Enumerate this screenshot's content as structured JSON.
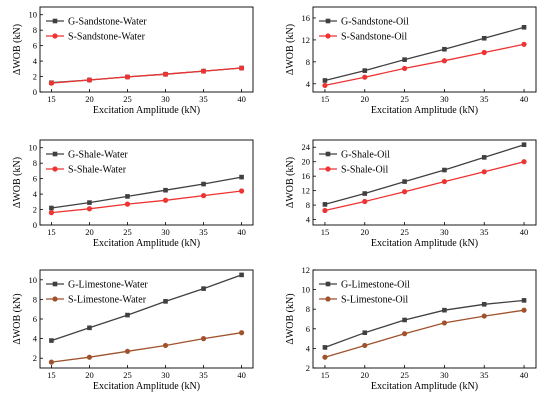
{
  "chart_data": [
    {
      "type": "line",
      "x": [
        15,
        20,
        25,
        30,
        35,
        40
      ],
      "xlabel": "Excitation Amplitude (kN)",
      "ylabel": "ΔWOB (kN)",
      "ylim": [
        0,
        11
      ],
      "yticks": [
        0,
        2,
        4,
        6,
        8,
        10
      ],
      "legend": "top-left",
      "grid": false,
      "series": [
        {
          "name": "G-Sandstone-Water",
          "marker": "square",
          "color": "#404040",
          "values": [
            1.2,
            1.55,
            1.95,
            2.3,
            2.7,
            3.1
          ]
        },
        {
          "name": "S-Sandstone-Water",
          "marker": "circle",
          "color": "#ee3333",
          "values": [
            1.15,
            1.55,
            1.95,
            2.3,
            2.7,
            3.1
          ]
        }
      ]
    },
    {
      "type": "line",
      "x": [
        15,
        20,
        25,
        30,
        35,
        40
      ],
      "xlabel": "Excitation Amplitude (kN)",
      "ylabel": "ΔWOB (kN)",
      "ylim": [
        2.5,
        18
      ],
      "yticks": [
        4,
        8,
        12,
        16
      ],
      "legend": "top-left",
      "grid": false,
      "series": [
        {
          "name": "G-Sandstone-Oil",
          "marker": "square",
          "color": "#404040",
          "values": [
            4.6,
            6.4,
            8.4,
            10.3,
            12.3,
            14.3
          ]
        },
        {
          "name": "S-Sandstone-Oil",
          "marker": "circle",
          "color": "#ee3333",
          "values": [
            3.7,
            5.2,
            6.8,
            8.2,
            9.7,
            11.2
          ]
        }
      ]
    },
    {
      "type": "line",
      "x": [
        15,
        20,
        25,
        30,
        35,
        40
      ],
      "xlabel": "Excitation Amplitude (kN)",
      "ylabel": "ΔWOB (kN)",
      "ylim": [
        0,
        11
      ],
      "yticks": [
        0,
        2,
        4,
        6,
        8,
        10
      ],
      "legend": "top-left",
      "grid": false,
      "series": [
        {
          "name": "G-Shale-Water",
          "marker": "square",
          "color": "#404040",
          "values": [
            2.2,
            2.9,
            3.7,
            4.5,
            5.3,
            6.2
          ]
        },
        {
          "name": "S-Shale-Water",
          "marker": "circle",
          "color": "#ee3333",
          "values": [
            1.6,
            2.1,
            2.7,
            3.2,
            3.8,
            4.4
          ]
        }
      ]
    },
    {
      "type": "line",
      "x": [
        15,
        20,
        25,
        30,
        35,
        40
      ],
      "xlabel": "Excitation Amplitude (kN)",
      "ylabel": "ΔWOB (kN)",
      "ylim": [
        2.5,
        26
      ],
      "yticks": [
        4,
        8,
        12,
        16,
        20,
        24
      ],
      "legend": "top-left",
      "grid": false,
      "series": [
        {
          "name": "G-Shale-Oil",
          "marker": "square",
          "color": "#404040",
          "values": [
            8.2,
            11.2,
            14.5,
            17.7,
            21.2,
            24.7
          ]
        },
        {
          "name": "S-Shale-Oil",
          "marker": "circle",
          "color": "#ee3333",
          "values": [
            6.5,
            9.0,
            11.7,
            14.5,
            17.2,
            20.0
          ]
        }
      ]
    },
    {
      "type": "line",
      "x": [
        15,
        20,
        25,
        30,
        35,
        40
      ],
      "xlabel": "Excitation Amplitude (kN)",
      "ylabel": "ΔWOB (kN)",
      "ylim": [
        1,
        11
      ],
      "yticks": [
        2,
        4,
        6,
        8,
        10
      ],
      "legend": "top-left",
      "grid": false,
      "series": [
        {
          "name": "G-Limestone-Water",
          "marker": "square",
          "color": "#404040",
          "values": [
            3.8,
            5.1,
            6.4,
            7.8,
            9.1,
            10.5
          ]
        },
        {
          "name": "S-Limestone-Water",
          "marker": "circle",
          "color": "#a0522d",
          "values": [
            1.6,
            2.1,
            2.7,
            3.3,
            4.0,
            4.6
          ]
        }
      ]
    },
    {
      "type": "line",
      "x": [
        15,
        20,
        25,
        30,
        35,
        40
      ],
      "xlabel": "Excitation Amplitude (kN)",
      "ylabel": "ΔWOB (kN)",
      "ylim": [
        2,
        12
      ],
      "yticks": [
        2,
        4,
        6,
        8,
        10,
        12
      ],
      "legend": "top-left",
      "grid": false,
      "series": [
        {
          "name": "G-Limestone-Oil",
          "marker": "square",
          "color": "#404040",
          "values": [
            4.1,
            5.6,
            6.9,
            7.9,
            8.5,
            8.9
          ]
        },
        {
          "name": "S-Limestone-Oil",
          "marker": "circle",
          "color": "#a0522d",
          "values": [
            3.1,
            4.3,
            5.5,
            6.6,
            7.3,
            7.9
          ]
        }
      ]
    }
  ]
}
